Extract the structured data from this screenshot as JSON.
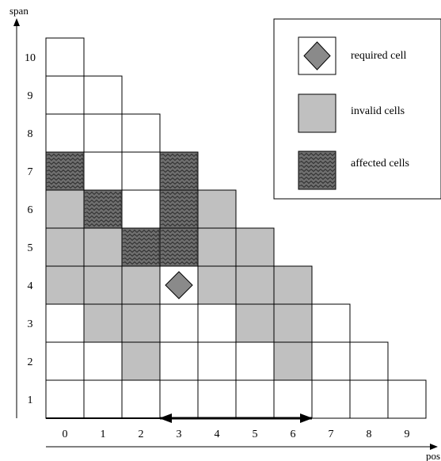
{
  "axes": {
    "y_label": "span",
    "x_label": "pos",
    "y_ticks": [
      "1",
      "2",
      "3",
      "4",
      "5",
      "6",
      "7",
      "8",
      "9",
      "10"
    ],
    "x_ticks": [
      "0",
      "1",
      "2",
      "3",
      "4",
      "5",
      "6",
      "7",
      "8",
      "9"
    ]
  },
  "legend": {
    "required": "required cell",
    "invalid": "invalid cells",
    "affected": "affected cells"
  },
  "colors": {
    "cell_fill": "#ffffff",
    "invalid_fill": "#c0c0c0",
    "affected_fill": "#6e6e6e",
    "affected_wave": "#2a2a2a",
    "required_fill": "#8a8a8a",
    "stroke": "#000000"
  },
  "grid": {
    "positions": 10,
    "max_span": 10
  },
  "cells": {
    "required": [
      {
        "pos": 3,
        "span": 4
      }
    ],
    "invalid": [
      {
        "pos": 0,
        "span": 4
      },
      {
        "pos": 0,
        "span": 5
      },
      {
        "pos": 0,
        "span": 6
      },
      {
        "pos": 1,
        "span": 3
      },
      {
        "pos": 1,
        "span": 4
      },
      {
        "pos": 1,
        "span": 5
      },
      {
        "pos": 2,
        "span": 2
      },
      {
        "pos": 2,
        "span": 3
      },
      {
        "pos": 2,
        "span": 4
      },
      {
        "pos": 4,
        "span": 4
      },
      {
        "pos": 4,
        "span": 5
      },
      {
        "pos": 4,
        "span": 6
      },
      {
        "pos": 5,
        "span": 3
      },
      {
        "pos": 5,
        "span": 4
      },
      {
        "pos": 5,
        "span": 5
      },
      {
        "pos": 6,
        "span": 2
      },
      {
        "pos": 6,
        "span": 3
      },
      {
        "pos": 6,
        "span": 4
      }
    ],
    "affected": [
      {
        "pos": 0,
        "span": 7
      },
      {
        "pos": 1,
        "span": 6
      },
      {
        "pos": 2,
        "span": 5
      },
      {
        "pos": 3,
        "span": 5
      },
      {
        "pos": 3,
        "span": 6
      },
      {
        "pos": 3,
        "span": 7
      }
    ]
  },
  "range_arrow": {
    "from_pos": 3,
    "to_pos": 6
  }
}
